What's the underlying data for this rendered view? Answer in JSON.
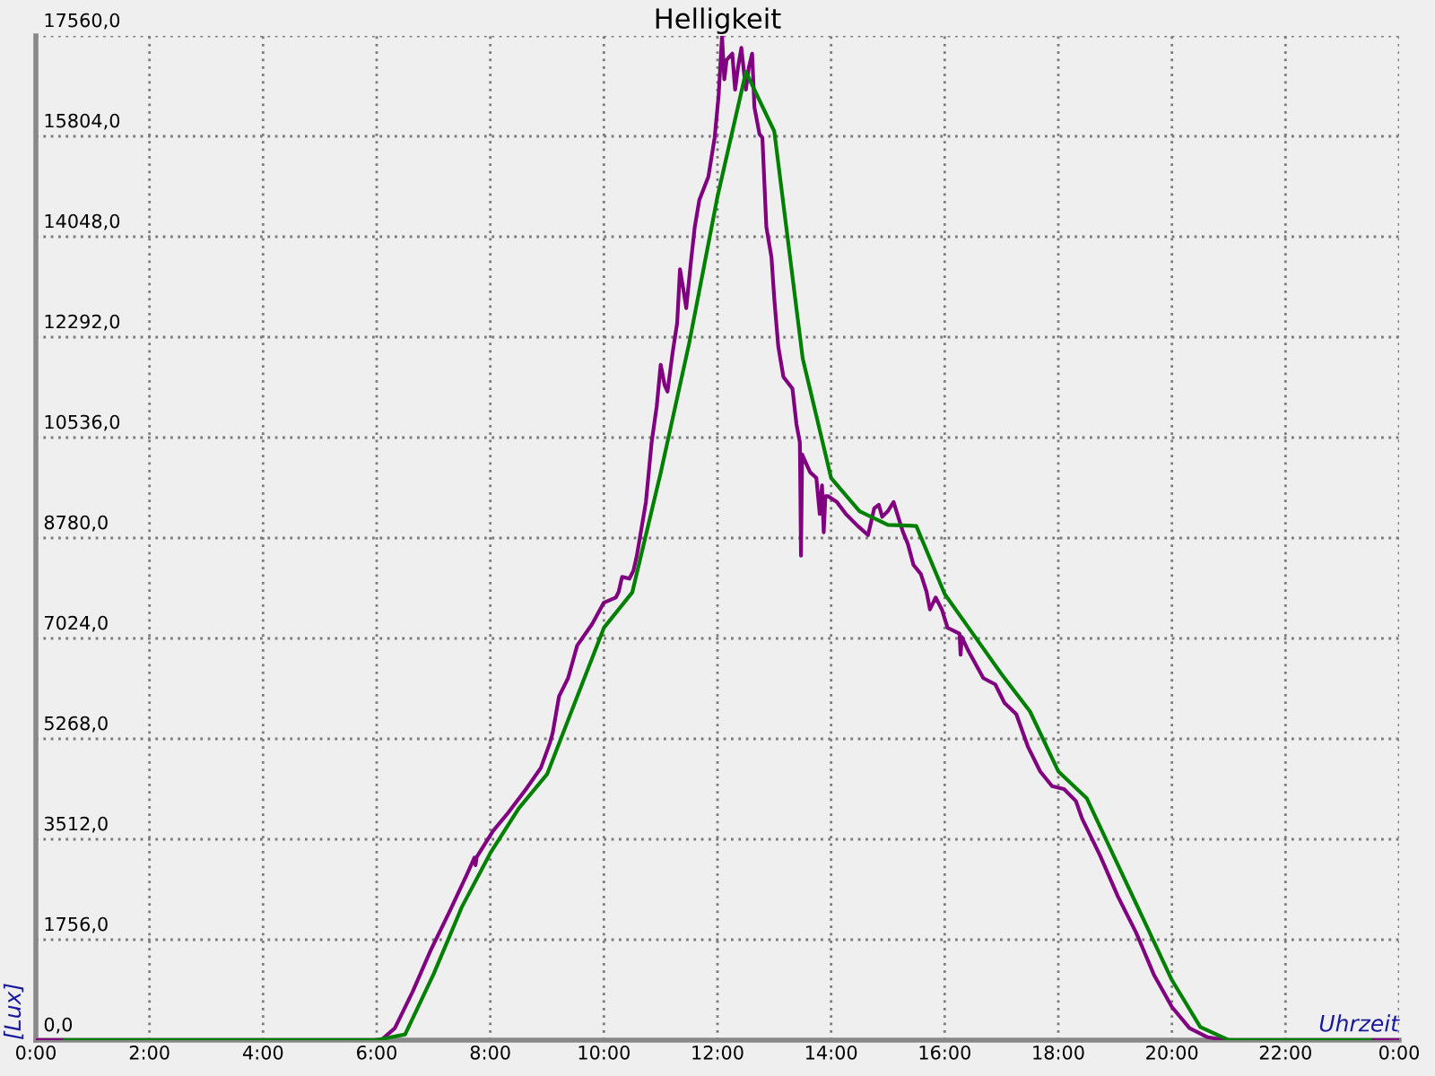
{
  "chart_data": {
    "type": "line",
    "title": "Helligkeit",
    "xlabel": "Uhrzeit",
    "ylabel": "[Lux]",
    "xlim": [
      0,
      24
    ],
    "xticks": [
      {
        "value": 0,
        "label": "0:00"
      },
      {
        "value": 2,
        "label": "2:00"
      },
      {
        "value": 4,
        "label": "4:00"
      },
      {
        "value": 6,
        "label": "6:00"
      },
      {
        "value": 8,
        "label": "8:00"
      },
      {
        "value": 10,
        "label": "10:00"
      },
      {
        "value": 12,
        "label": "12:00"
      },
      {
        "value": 14,
        "label": "14:00"
      },
      {
        "value": 16,
        "label": "16:00"
      },
      {
        "value": 18,
        "label": "18:00"
      },
      {
        "value": 20,
        "label": "20:00"
      },
      {
        "value": 22,
        "label": "22:00"
      },
      {
        "value": 24,
        "label": "0:00"
      }
    ],
    "ylim": [
      0,
      17560
    ],
    "yticks": [
      {
        "value": 0,
        "label": "0,0"
      },
      {
        "value": 1756,
        "label": "1756,0"
      },
      {
        "value": 3512,
        "label": "3512,0"
      },
      {
        "value": 5268,
        "label": "5268,0"
      },
      {
        "value": 7024,
        "label": "7024,0"
      },
      {
        "value": 8780,
        "label": "8780,0"
      },
      {
        "value": 10536,
        "label": "10536,0"
      },
      {
        "value": 12292,
        "label": "12292,0"
      },
      {
        "value": 14048,
        "label": "14048,0"
      },
      {
        "value": 15804,
        "label": "15804,0"
      },
      {
        "value": 17560,
        "label": "17560,0"
      }
    ],
    "grid": true,
    "series": [
      {
        "color": "#800080",
        "x": [
          0,
          6.0,
          6.1,
          6.32,
          6.63,
          6.95,
          7.26,
          7.58,
          7.72,
          7.74,
          7.76,
          8.05,
          8.31,
          8.63,
          8.89,
          9.05,
          9.1,
          9.21,
          9.37,
          9.53,
          9.79,
          10.0,
          10.21,
          10.26,
          10.32,
          10.45,
          10.52,
          10.58,
          10.74,
          10.84,
          10.93,
          11.0,
          11.07,
          11.12,
          11.21,
          11.29,
          11.34,
          11.4,
          11.45,
          11.53,
          11.6,
          11.68,
          11.84,
          11.95,
          12.02,
          12.08,
          12.12,
          12.16,
          12.26,
          12.31,
          12.36,
          12.42,
          12.5,
          12.55,
          12.61,
          12.65,
          12.74,
          12.79,
          12.86,
          12.95,
          13.0,
          13.07,
          13.16,
          13.32,
          13.39,
          13.45,
          13.47,
          13.49,
          13.63,
          13.74,
          13.8,
          13.84,
          13.87,
          13.9,
          13.95,
          14.1,
          14.26,
          14.47,
          14.65,
          14.76,
          14.84,
          14.9,
          15.0,
          15.1,
          15.26,
          15.35,
          15.45,
          15.58,
          15.68,
          15.74,
          15.84,
          15.95,
          16.05,
          16.26,
          16.28,
          16.3,
          16.42,
          16.68,
          16.89,
          17.05,
          17.26,
          17.47,
          17.68,
          17.89,
          18.1,
          18.31,
          18.42,
          18.73,
          19.05,
          19.37,
          19.68,
          20.0,
          20.31,
          20.63,
          20.95,
          24
        ],
        "values": [
          0,
          0,
          20,
          210,
          840,
          1570,
          2200,
          2880,
          3190,
          3060,
          3200,
          3660,
          3970,
          4390,
          4760,
          5200,
          5380,
          6010,
          6330,
          6900,
          7270,
          7650,
          7740,
          7840,
          8100,
          8070,
          8210,
          8470,
          9410,
          10450,
          11080,
          11810,
          11450,
          11340,
          12020,
          12540,
          13480,
          13120,
          12800,
          13590,
          14220,
          14690,
          15100,
          15780,
          16520,
          17560,
          16800,
          17140,
          17250,
          16620,
          17000,
          17350,
          16620,
          17000,
          17250,
          16310,
          15840,
          15780,
          14220,
          13690,
          12960,
          12130,
          11600,
          11390,
          10770,
          10450,
          8470,
          10240,
          9930,
          9830,
          9200,
          9700,
          8880,
          9510,
          9510,
          9410,
          9200,
          8990,
          8830,
          9300,
          9360,
          9150,
          9250,
          9410,
          8900,
          8680,
          8310,
          8150,
          7840,
          7530,
          7740,
          7530,
          7210,
          7110,
          6740,
          7050,
          6800,
          6330,
          6220,
          5900,
          5700,
          5120,
          4700,
          4440,
          4390,
          4180,
          3870,
          3240,
          2510,
          1880,
          1150,
          580,
          210,
          50,
          0,
          0
        ]
      },
      {
        "color": "#008000",
        "x": [
          0.5,
          6.0,
          6.5,
          7.0,
          7.5,
          8.0,
          8.5,
          9.0,
          9.5,
          10.0,
          10.5,
          11.0,
          11.5,
          12.0,
          12.5,
          13.0,
          13.5,
          14.0,
          14.5,
          15.0,
          15.5,
          16.0,
          16.5,
          17.0,
          17.5,
          18.0,
          18.5,
          19.0,
          19.5,
          20.0,
          20.5,
          21.0,
          23.5
        ],
        "values": [
          0,
          0,
          100,
          1150,
          2330,
          3270,
          4050,
          4650,
          5930,
          7210,
          7830,
          9920,
          12180,
          14750,
          16930,
          15890,
          11920,
          9830,
          9250,
          9010,
          8990,
          7800,
          7100,
          6400,
          5750,
          4700,
          4230,
          3170,
          2110,
          1050,
          230,
          0,
          0
        ]
      }
    ]
  }
}
